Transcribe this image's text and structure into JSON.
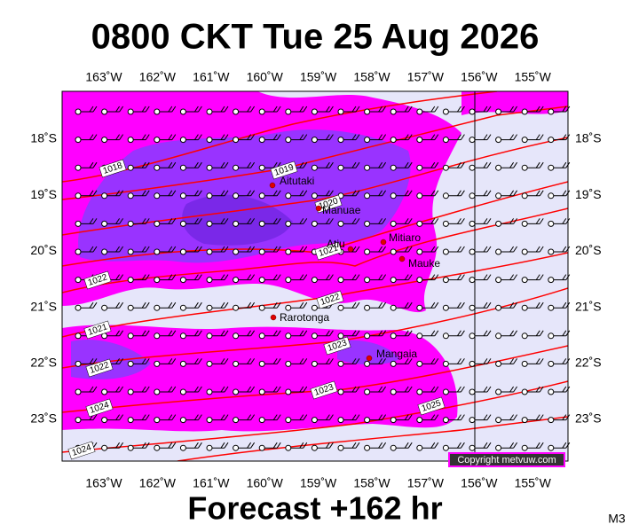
{
  "title": "0800 CKT Tue 25 Aug 2026",
  "longitude_labels": [
    "163˚W",
    "162˚W",
    "161˚W",
    "160˚W",
    "159˚W",
    "158˚W",
    "157˚W",
    "156˚W",
    "155˚W"
  ],
  "latitude_labels": [
    "18˚S",
    "19˚S",
    "20˚S",
    "21˚S",
    "22˚S",
    "23˚S"
  ],
  "places": [
    "Aitutaki",
    "Manuae",
    "Atiu",
    "Mitiaro",
    "Mauke",
    "Rarotonga",
    "Mangaia"
  ],
  "isobar_labels": [
    "1018",
    "1019",
    "1020",
    "1021",
    "1022",
    "1022",
    "1021",
    "1022",
    "1023",
    "1023",
    "1024",
    "1025",
    "1024"
  ],
  "copyright": "Copyright metvuw.com",
  "footer": "Forecast +162 hr",
  "model": "M3"
}
